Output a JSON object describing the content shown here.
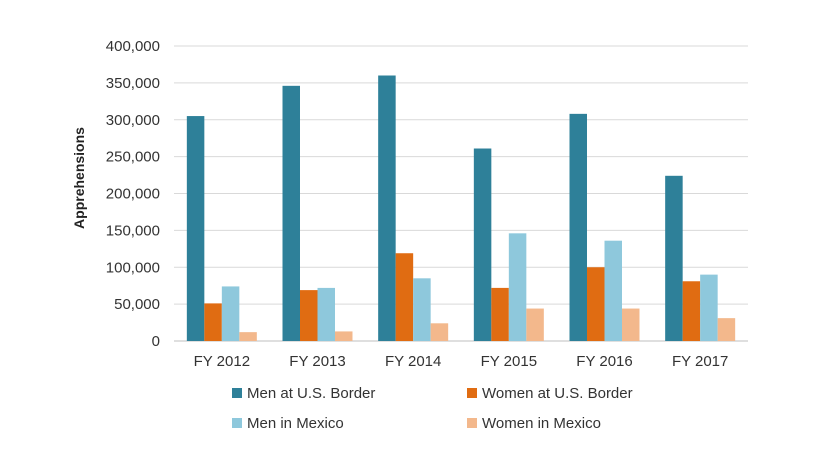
{
  "chart_data": {
    "type": "bar",
    "title": "",
    "xlabel": "",
    "ylabel": "Apprehensions",
    "ylim": [
      0,
      400000
    ],
    "yticks": [
      0,
      50000,
      100000,
      150000,
      200000,
      250000,
      300000,
      350000,
      400000
    ],
    "ytick_labels": [
      "0",
      "50,000",
      "100,000",
      "150,000",
      "200,000",
      "250,000",
      "300,000",
      "350,000",
      "400,000"
    ],
    "grid": true,
    "legend_position": "bottom",
    "categories": [
      "FY 2012",
      "FY 2013",
      "FY 2014",
      "FY 2015",
      "FY 2016",
      "FY 2017"
    ],
    "series": [
      {
        "name": "Men at U.S. Border",
        "color": "#2e8099",
        "values": [
          305000,
          346000,
          360000,
          261000,
          308000,
          224000
        ]
      },
      {
        "name": "Women at U.S. Border",
        "color": "#e06c12",
        "values": [
          51000,
          69000,
          119000,
          72000,
          100000,
          81000
        ]
      },
      {
        "name": "Men in Mexico",
        "color": "#8ec8dc",
        "values": [
          74000,
          72000,
          85000,
          146000,
          136000,
          90000
        ]
      },
      {
        "name": "Women in Mexico",
        "color": "#f3b88c",
        "values": [
          12000,
          13000,
          24000,
          44000,
          44000,
          31000
        ]
      }
    ]
  }
}
